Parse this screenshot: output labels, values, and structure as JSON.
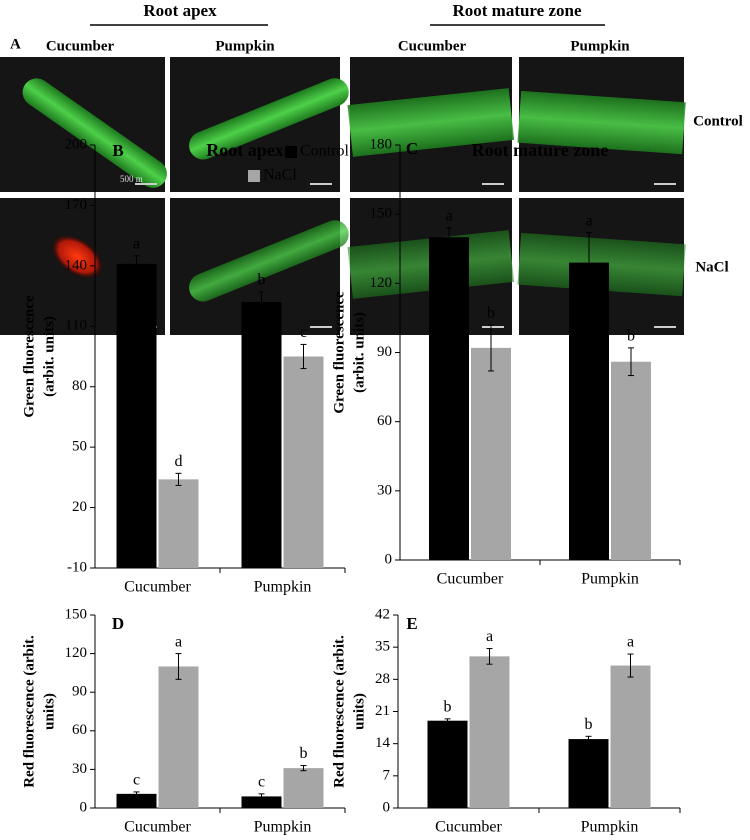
{
  "figure_a": {
    "panel_label": "A",
    "headers": [
      "Root apex",
      "Root mature zone"
    ],
    "columns": [
      "Cucumber",
      "Pumpkin",
      "Cucumber",
      "Pumpkin"
    ],
    "rows": [
      "Control",
      "NaCl"
    ],
    "scale_bar": "500  m"
  },
  "chart_data": [
    {
      "type": "bar",
      "panel": "B",
      "title": "Root apex",
      "ylabel": [
        "Green fluorescence",
        "(arbit. units)"
      ],
      "categories": [
        "Cucumber",
        "Pumpkin"
      ],
      "series": [
        {
          "name": "Control",
          "color": "#000000",
          "values": [
            141,
            122
          ],
          "errors": [
            4,
            5
          ],
          "letters": [
            "a",
            "b"
          ]
        },
        {
          "name": "NaCl",
          "color": "#a6a6a6",
          "values": [
            34,
            95
          ],
          "errors": [
            3,
            6
          ],
          "letters": [
            "d",
            "c"
          ]
        }
      ],
      "ylim": [
        -10,
        200
      ],
      "yticks": [
        -10,
        20,
        50,
        80,
        110,
        140,
        170,
        200
      ],
      "legend": "top-right"
    },
    {
      "type": "bar",
      "panel": "C",
      "title": "Root mature zone",
      "ylabel": [
        "Green fluorescence",
        "(arbit. units)"
      ],
      "categories": [
        "Cucumber",
        "Pumpkin"
      ],
      "series": [
        {
          "color": "#000000",
          "values": [
            140,
            129
          ],
          "errors": [
            4,
            13
          ],
          "letters": [
            "a",
            "a"
          ]
        },
        {
          "color": "#a6a6a6",
          "values": [
            92,
            86
          ],
          "errors": [
            10,
            6
          ],
          "letters": [
            "b",
            "b"
          ]
        }
      ],
      "ylim": [
        0,
        180
      ],
      "yticks": [
        0,
        30,
        60,
        90,
        120,
        150,
        180
      ]
    },
    {
      "type": "bar",
      "panel": "D",
      "ylabel": [
        "Red fluorescence (arbit.",
        "units)"
      ],
      "categories": [
        "Cucumber",
        "Pumpkin"
      ],
      "series": [
        {
          "color": "#000000",
          "values": [
            11,
            9
          ],
          "errors": [
            1.5,
            2
          ],
          "letters": [
            "c",
            "c"
          ]
        },
        {
          "color": "#a6a6a6",
          "values": [
            110,
            31
          ],
          "errors": [
            10,
            2
          ],
          "letters": [
            "a",
            "b"
          ]
        }
      ],
      "ylim": [
        0,
        150
      ],
      "yticks": [
        0,
        30,
        60,
        90,
        120,
        150
      ]
    },
    {
      "type": "bar",
      "panel": "E",
      "ylabel": [
        "Red fluorescence (arbit.",
        "units)"
      ],
      "categories": [
        "Cucumber",
        "Pumpkin"
      ],
      "series": [
        {
          "color": "#000000",
          "values": [
            19,
            15
          ],
          "errors": [
            0.4,
            0.6
          ],
          "letters": [
            "b",
            "b"
          ]
        },
        {
          "color": "#a6a6a6",
          "values": [
            33,
            31
          ],
          "errors": [
            1.7,
            2.5
          ],
          "letters": [
            "a",
            "a"
          ]
        }
      ],
      "ylim": [
        0,
        42
      ],
      "yticks": [
        0,
        7,
        14,
        21,
        28,
        35,
        42
      ]
    }
  ]
}
